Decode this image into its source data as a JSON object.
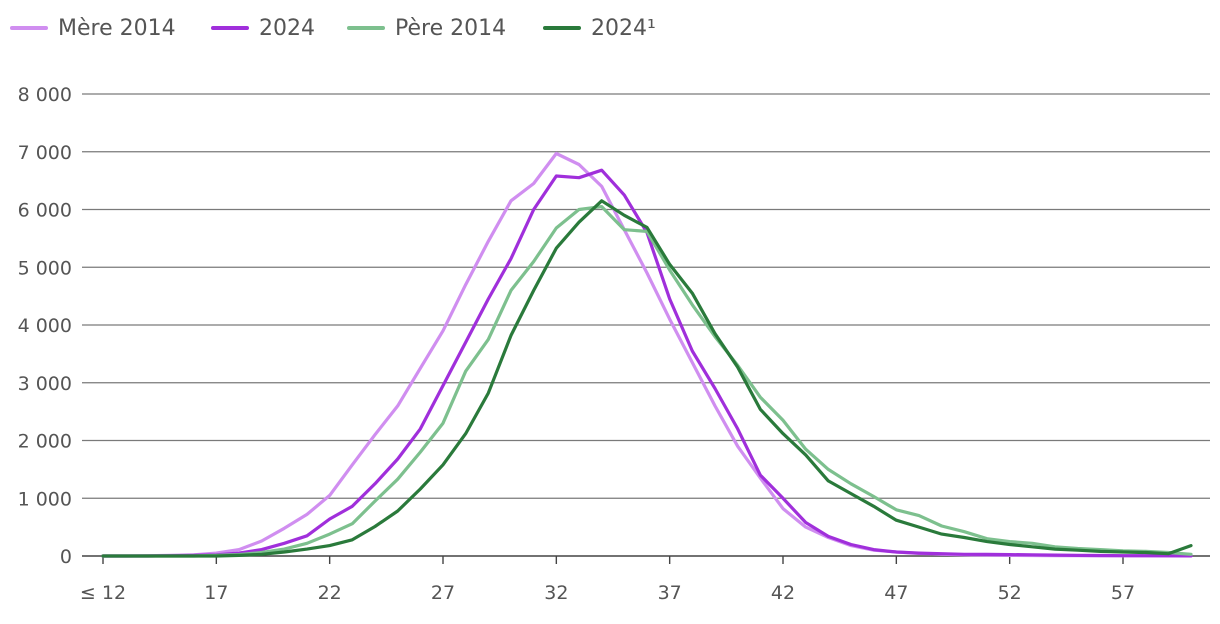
{
  "legend": [
    {
      "label": "Mère 2014",
      "color": "#d08ef0"
    },
    {
      "label": "2024",
      "color": "#a02fdb"
    },
    {
      "label": "Père 2014",
      "color": "#7dc08e"
    },
    {
      "label": "2024¹",
      "color": "#2a7a3b"
    }
  ],
  "chart_data": {
    "type": "line",
    "title": "",
    "xlabel": "",
    "ylabel": "",
    "ylim": [
      0,
      8000
    ],
    "xlim": [
      12,
      60
    ],
    "y_ticks": [
      0,
      1000,
      2000,
      3000,
      4000,
      5000,
      6000,
      7000,
      8000
    ],
    "y_tick_labels": [
      "0",
      "1 000",
      "2 000",
      "3 000",
      "4 000",
      "5 000",
      "6 000",
      "7 000",
      "8 000"
    ],
    "x_ticks": [
      12,
      17,
      22,
      27,
      32,
      37,
      42,
      47,
      52,
      57
    ],
    "x_tick_labels": [
      "≤ 12",
      "17",
      "22",
      "27",
      "32",
      "37",
      "42",
      "47",
      "52",
      "57"
    ],
    "grid": "horizontal",
    "legend_position": "top-left",
    "x": [
      12,
      13,
      14,
      15,
      16,
      17,
      18,
      19,
      20,
      21,
      22,
      23,
      24,
      25,
      26,
      27,
      28,
      29,
      30,
      31,
      32,
      33,
      34,
      35,
      36,
      37,
      38,
      39,
      40,
      41,
      42,
      43,
      44,
      45,
      46,
      47,
      48,
      49,
      50,
      51,
      52,
      53,
      54,
      55,
      56,
      57,
      58,
      59,
      60
    ],
    "series": [
      {
        "name": "Mère 2014",
        "color": "#d08ef0",
        "values": [
          0,
          0,
          5,
          10,
          20,
          50,
          110,
          260,
          480,
          720,
          1050,
          1580,
          2100,
          2600,
          3250,
          3900,
          4700,
          5450,
          6150,
          6450,
          6970,
          6780,
          6400,
          5650,
          4900,
          4100,
          3350,
          2600,
          1900,
          1350,
          820,
          500,
          320,
          180,
          100,
          70,
          45,
          30,
          20,
          15,
          10,
          8,
          5,
          5,
          3,
          3,
          2,
          2,
          1
        ]
      },
      {
        "name": "2024",
        "color": "#a02fdb",
        "values": [
          0,
          0,
          0,
          5,
          10,
          20,
          50,
          110,
          220,
          350,
          640,
          860,
          1250,
          1680,
          2200,
          2950,
          3700,
          4450,
          5150,
          6000,
          6580,
          6550,
          6680,
          6250,
          5600,
          4450,
          3550,
          2900,
          2200,
          1400,
          1000,
          580,
          340,
          200,
          110,
          70,
          50,
          40,
          30,
          28,
          25,
          20,
          15,
          10,
          8,
          5,
          5,
          3,
          2
        ]
      },
      {
        "name": "Père 2014",
        "color": "#7dc08e",
        "values": [
          0,
          0,
          0,
          0,
          0,
          10,
          25,
          60,
          120,
          220,
          380,
          560,
          950,
          1330,
          1800,
          2300,
          3200,
          3750,
          4600,
          5100,
          5680,
          6000,
          6050,
          5650,
          5620,
          4950,
          4350,
          3800,
          3300,
          2750,
          2350,
          1850,
          1500,
          1250,
          1030,
          800,
          700,
          520,
          420,
          300,
          250,
          220,
          160,
          130,
          110,
          90,
          80,
          60,
          30
        ]
      },
      {
        "name": "2024¹",
        "color": "#2a7a3b",
        "values": [
          0,
          0,
          0,
          0,
          0,
          0,
          10,
          30,
          70,
          120,
          180,
          280,
          510,
          780,
          1160,
          1580,
          2120,
          2820,
          3820,
          4600,
          5330,
          5780,
          6150,
          5900,
          5690,
          5050,
          4550,
          3850,
          3270,
          2540,
          2120,
          1750,
          1300,
          1080,
          860,
          620,
          500,
          380,
          320,
          250,
          200,
          160,
          120,
          100,
          80,
          70,
          60,
          40,
          180
        ]
      }
    ]
  }
}
